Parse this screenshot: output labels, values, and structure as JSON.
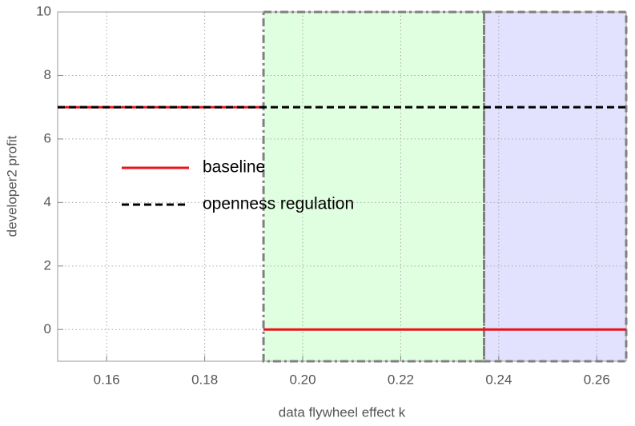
{
  "chart_data": {
    "type": "line",
    "xlabel": "data flywheel effect k",
    "ylabel": "developer2 profit",
    "xlim": [
      0.15,
      0.266
    ],
    "ylim": [
      -1,
      10
    ],
    "xticks": [
      0.16,
      0.18,
      {
        "value": 0.2,
        "label": "0.20"
      },
      0.22,
      0.24,
      0.26
    ],
    "yticks": [
      0,
      2,
      4,
      6,
      8,
      10
    ],
    "grid": true,
    "regions": [
      {
        "xlim": [
          0.192,
          0.237
        ],
        "color": "#e0ffe0",
        "style": "dashdot"
      },
      {
        "xlim": [
          0.237,
          0.266
        ],
        "color": "#e2e2ff",
        "style": "dash"
      }
    ],
    "series": [
      {
        "name": "baseline",
        "color": "#e8141a",
        "style": "solid",
        "x": [
          0.15,
          0.192,
          0.192,
          0.192,
          0.266
        ],
        "values": [
          7,
          7,
          null,
          0,
          0
        ]
      },
      {
        "name": "openness regulation",
        "color": "#000000",
        "style": "dash",
        "x": [
          0.15,
          0.266
        ],
        "values": [
          7,
          7
        ]
      }
    ]
  }
}
